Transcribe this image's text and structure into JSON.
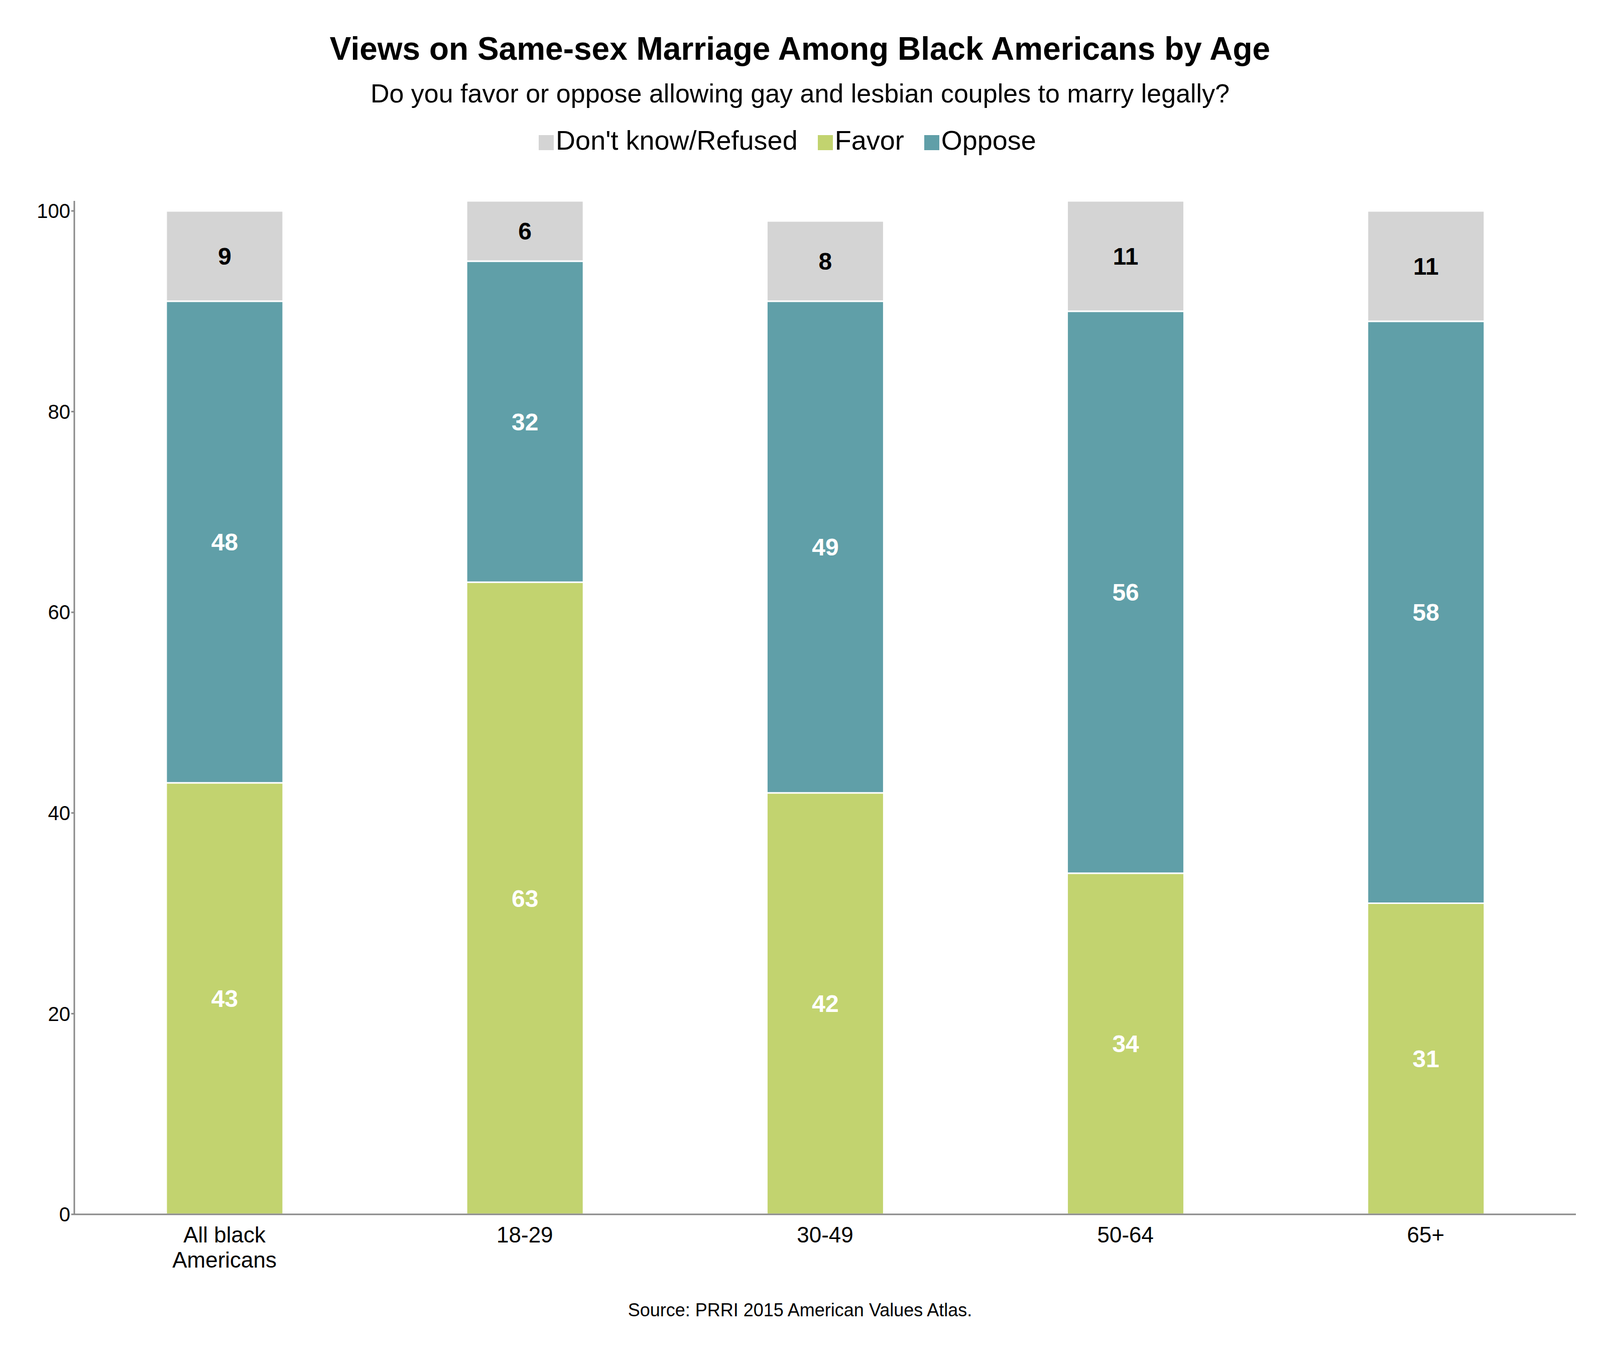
{
  "chart_data": {
    "type": "bar",
    "title": "Views on Same-sex Marriage Among Black Americans by Age",
    "subtitle": "Do you favor or oppose allowing gay and lesbian couples to marry legally?",
    "source": "Source: PRRI 2015 American Values Atlas.",
    "categories": [
      "All black Americans",
      "18-29",
      "30-49",
      "50-64",
      "65+"
    ],
    "series": [
      {
        "name": "Favor",
        "color": "#c2d36f",
        "values": [
          43,
          63,
          42,
          34,
          31
        ]
      },
      {
        "name": "Oppose",
        "color": "#609fa8",
        "values": [
          48,
          32,
          49,
          56,
          58
        ]
      },
      {
        "name": "Don't know/Refused",
        "color": "#d4d4d4",
        "values": [
          9,
          6,
          8,
          11,
          11
        ]
      }
    ],
    "ylim": [
      0,
      101
    ],
    "yticks": [
      0,
      20,
      40,
      60,
      80,
      100
    ],
    "stacked": true,
    "data_labels": true,
    "grid": false,
    "legend": "top"
  }
}
